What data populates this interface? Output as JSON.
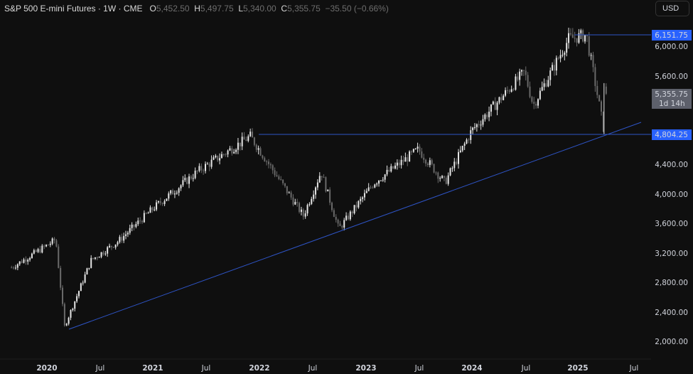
{
  "header": {
    "symbol": "S&P 500 E-mini Futures · 1W · CME",
    "open_label": "O",
    "open": "5,452.50",
    "high_label": "H",
    "high": "5,497.75",
    "low_label": "L",
    "low": "5,340.00",
    "close_label": "C",
    "close": "5,355.75",
    "change": "−35.50 (−0.66%)"
  },
  "currency_button": "USD",
  "price_axis": {
    "ticks": [
      "6,000.00",
      "5,600.00",
      "4,400.00",
      "4,000.00",
      "3,600.00",
      "3,200.00",
      "2,800.00",
      "2,400.00",
      "2,000.00"
    ],
    "resistance_label": "6,151.75",
    "support_label": "4,804.25",
    "last_price_label": "5,355.75",
    "countdown": "1d 14h"
  },
  "time_axis": {
    "ticks": [
      "2020",
      "Jul",
      "2021",
      "Jul",
      "2022",
      "Jul",
      "2023",
      "Jul",
      "2024",
      "Jul",
      "2025",
      "Jul"
    ]
  },
  "colors": {
    "background": "#0f0f0f",
    "up_candle": "#e6e6e6",
    "down_candle": "#6a6a6a",
    "line": "#2e54c6",
    "label_blue": "#2962ff",
    "last_price_bg": "#5d606b"
  },
  "chart_data": {
    "type": "candlestick",
    "title": "S&P 500 E-mini Futures · 1W · CME",
    "xlabel": "",
    "ylabel": "USD",
    "ylim": [
      1800,
      6400
    ],
    "y_ticks": [
      2000,
      2400,
      2800,
      3200,
      3600,
      4000,
      4400,
      5600,
      6000
    ],
    "x_ticks": [
      "2020",
      "Jul 2020",
      "2021",
      "Jul 2021",
      "2022",
      "Jul 2022",
      "2023",
      "Jul 2023",
      "2024",
      "Jul 2024",
      "2025",
      "Jul 2025"
    ],
    "grid": false,
    "last_candle": {
      "open": 5452.5,
      "high": 5497.75,
      "low": 5340.0,
      "close": 5355.75,
      "change": -35.5,
      "change_pct": -0.66
    },
    "approx_closes": [
      {
        "date": "2019-09",
        "close": 3000
      },
      {
        "date": "2020-01",
        "close": 3300
      },
      {
        "date": "2020-02",
        "close": 3380
      },
      {
        "date": "2020-03",
        "close": 2200
      },
      {
        "date": "2020-06",
        "close": 3100
      },
      {
        "date": "2020-09",
        "close": 3350
      },
      {
        "date": "2021-01",
        "close": 3800
      },
      {
        "date": "2021-06",
        "close": 4300
      },
      {
        "date": "2021-12",
        "close": 4780
      },
      {
        "date": "2022-06",
        "close": 3700
      },
      {
        "date": "2022-08",
        "close": 4300
      },
      {
        "date": "2022-10",
        "close": 3520
      },
      {
        "date": "2023-02",
        "close": 4150
      },
      {
        "date": "2023-07",
        "close": 4600
      },
      {
        "date": "2023-10",
        "close": 4150
      },
      {
        "date": "2024-01",
        "close": 4850
      },
      {
        "date": "2024-04",
        "close": 5250
      },
      {
        "date": "2024-07",
        "close": 5650
      },
      {
        "date": "2024-08",
        "close": 5200
      },
      {
        "date": "2024-12",
        "close": 6100
      },
      {
        "date": "2025-02",
        "close": 6150
      },
      {
        "date": "2025-04",
        "close": 4850
      },
      {
        "date": "2025-04-latest",
        "close": 5355.75
      }
    ],
    "annotations": [
      {
        "type": "horizontal_line",
        "price": 6151.75,
        "from": "2024-12",
        "label": "6,151.75"
      },
      {
        "type": "horizontal_line",
        "price": 4804.25,
        "from": "2022-01",
        "label": "4,804.25"
      },
      {
        "type": "trendline",
        "points": [
          {
            "date": "2020-03",
            "price": 2170
          },
          {
            "date": "2022-10",
            "price": 3500
          },
          {
            "date": "2025-04",
            "price": 4804
          },
          {
            "date": "2025-06",
            "price": 5080
          }
        ]
      }
    ]
  }
}
